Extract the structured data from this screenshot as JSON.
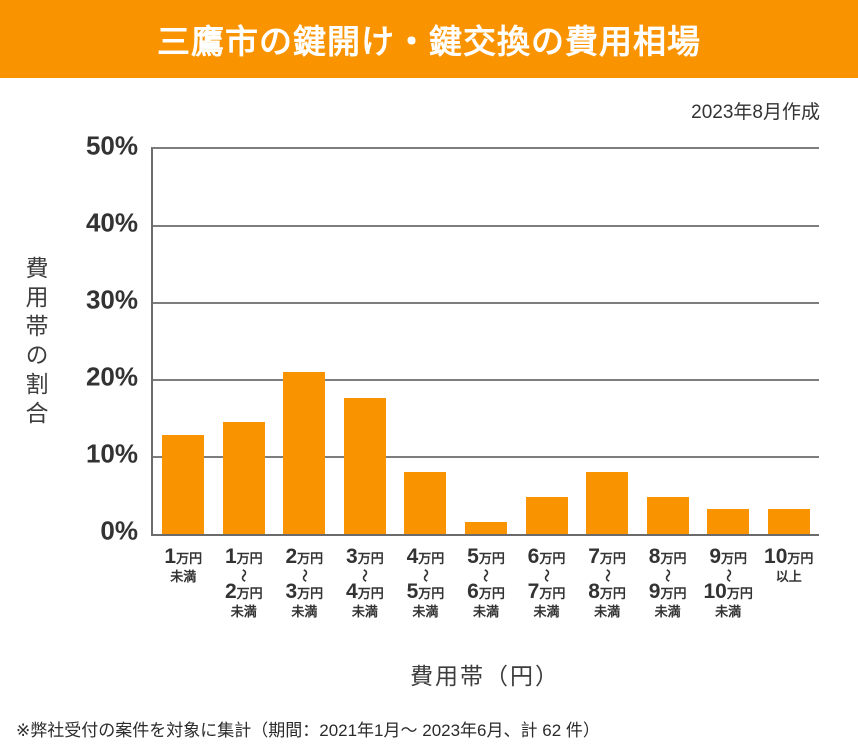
{
  "header": {
    "title": "三鷹市の鍵開け・鍵交換の費用相場"
  },
  "meta": {
    "created_note": "2023年8月作成"
  },
  "footnote": "※弊社受付の案件を対象に集計（期間：2021年1月～ 2023年6月、計 62 件）",
  "colors": {
    "accent_orange": "#F99300",
    "bar_orange": "#F99300",
    "grid_gray": "#7D7D7D",
    "axis_gray": "#6B6B6B",
    "title_text": "#FFFFFF",
    "body_text": "#333333"
  },
  "chart_data": {
    "type": "bar",
    "title": "三鷹市の鍵開け・鍵交換の費用相場",
    "xlabel": "費用帯（円）",
    "ylabel": "費用帯の割合",
    "ylim": [
      0,
      50
    ],
    "yticks": [
      0,
      10,
      20,
      30,
      40,
      50
    ],
    "ytick_suffix": "%",
    "grid": "horizontal",
    "legend": "none",
    "bar_color": "#F99300",
    "categories": [
      "1万円未満",
      "1万円〜2万円未満",
      "2万円〜3万円未満",
      "3万円〜4万円未満",
      "4万円〜5万円未満",
      "5万円〜6万円未満",
      "6万円〜7万円未満",
      "7万円〜8万円未満",
      "8万円〜9万円未満",
      "9万円〜10万円未満",
      "10万円以上"
    ],
    "category_lines": [
      [
        "1万円",
        "未満"
      ],
      [
        "1万円",
        "〜",
        "2万円",
        "未満"
      ],
      [
        "2万円",
        "〜",
        "3万円",
        "未満"
      ],
      [
        "3万円",
        "〜",
        "4万円",
        "未満"
      ],
      [
        "4万円",
        "〜",
        "5万円",
        "未満"
      ],
      [
        "5万円",
        "〜",
        "6万円",
        "未満"
      ],
      [
        "6万円",
        "〜",
        "7万円",
        "未満"
      ],
      [
        "7万円",
        "〜",
        "8万円",
        "未満"
      ],
      [
        "8万円",
        "〜",
        "9万円",
        "未満"
      ],
      [
        "9万円",
        "〜",
        "10万円",
        "未満"
      ],
      [
        "10万円",
        "以上"
      ]
    ],
    "values": [
      12.9,
      14.5,
      21.0,
      17.7,
      8.1,
      1.6,
      4.8,
      8.1,
      4.8,
      3.2,
      3.2
    ]
  }
}
